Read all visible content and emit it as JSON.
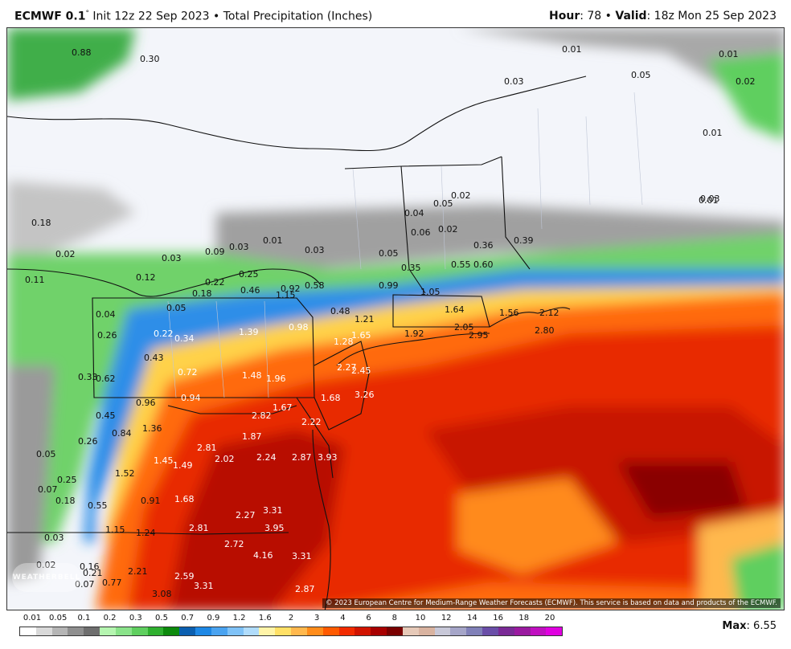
{
  "header": {
    "model": "ECMWF 0.1",
    "degree": "°",
    "run": " Init 12z 22 Sep 2023 • Total Precipitation (Inches)",
    "hour_label": "Hour",
    "hour_value": ": 78 • ",
    "valid_label": "Valid",
    "valid_value": ": 18z Mon 25 Sep 2023"
  },
  "map": {
    "copyright": "© 2023 European Centre for Medium-Range Weather Forecasts (ECMWF). This service is based on data and products of the ECMWF.",
    "logo_text": "WEATHERBELL",
    "value_labels": [
      "0.88",
      "0.30",
      "0.01",
      "0.01",
      "0.05",
      "0.02",
      "0.03",
      "0.01",
      "0.18",
      "0.01",
      "0.03",
      "0.02",
      "0.11",
      "0.12",
      "0.03",
      "0.09",
      "0.03",
      "0.01",
      "0.03",
      "0.05",
      "0.04",
      "0.05",
      "0.02",
      "0.06",
      "0.02",
      "0.36",
      "0.39",
      "0.35",
      "0.55",
      "0.60",
      "0.99",
      "1.05",
      "0.22",
      "0.18",
      "0.25",
      "0.46",
      "0.92",
      "1.15",
      "0.58",
      "0.48",
      "1.21",
      "1.64",
      "1.56",
      "2.12",
      "2.80",
      "2.95",
      "2.05",
      "1.92",
      "1.65",
      "1.28",
      "0.04",
      "0.05",
      "0.26",
      "0.22",
      "0.34",
      "1.39",
      "0.98",
      "0.43",
      "0.72",
      "1.48",
      "1.96",
      "2.27",
      "2.45",
      "0.33",
      "0.62",
      "0.96",
      "0.94",
      "1.67",
      "1.68",
      "3.26",
      "0.45",
      "1.36",
      "2.82",
      "2.22",
      "0.84",
      "1.87",
      "0.26",
      "2.81",
      "2.02",
      "2.24",
      "2.87",
      "3.93",
      "1.45",
      "1.49",
      "0.05",
      "1.52",
      "0.25",
      "0.07",
      "0.18",
      "0.55",
      "0.91",
      "1.68",
      "2.27",
      "3.31",
      "3.95",
      "2.81",
      "1.15",
      "1.24",
      "0.03",
      "2.72",
      "4.16",
      "3.31",
      "0.02",
      "0.16",
      "0.21",
      "0.07",
      "0.77",
      "2.21",
      "2.59",
      "3.31",
      "3.08",
      "2.87"
    ]
  },
  "legend": {
    "ticks": [
      "0.01",
      "0.05",
      "0.1",
      "0.2",
      "0.3",
      "0.5",
      "0.7",
      "0.9",
      "1.2",
      "1.6",
      "2",
      "3",
      "4",
      "6",
      "8",
      "10",
      "12",
      "14",
      "16",
      "18",
      "20"
    ],
    "colors": [
      "#ffffff",
      "#d9d9d9",
      "#b5b5b5",
      "#8f8f8f",
      "#6e6e6e",
      "#b5f5b0",
      "#8ae38a",
      "#5fcf5f",
      "#2fb02f",
      "#0d8a0d",
      "#0b5fb0",
      "#1e88e5",
      "#4aa3f0",
      "#7fc2f7",
      "#b0dcfb",
      "#fff4a8",
      "#ffe066",
      "#ffb84d",
      "#ff8c1a",
      "#ff5a00",
      "#f22b00",
      "#d11400",
      "#a80000",
      "#7a0000",
      "#e6c9b8",
      "#d9b3a0",
      "#c8c8d8",
      "#a5a5c8",
      "#8080b8",
      "#6a4ea8",
      "#7a2a96",
      "#9a1aa0",
      "#c00fc0",
      "#e000e0"
    ],
    "max_label": "Max",
    "max_value": ": 6.55"
  }
}
